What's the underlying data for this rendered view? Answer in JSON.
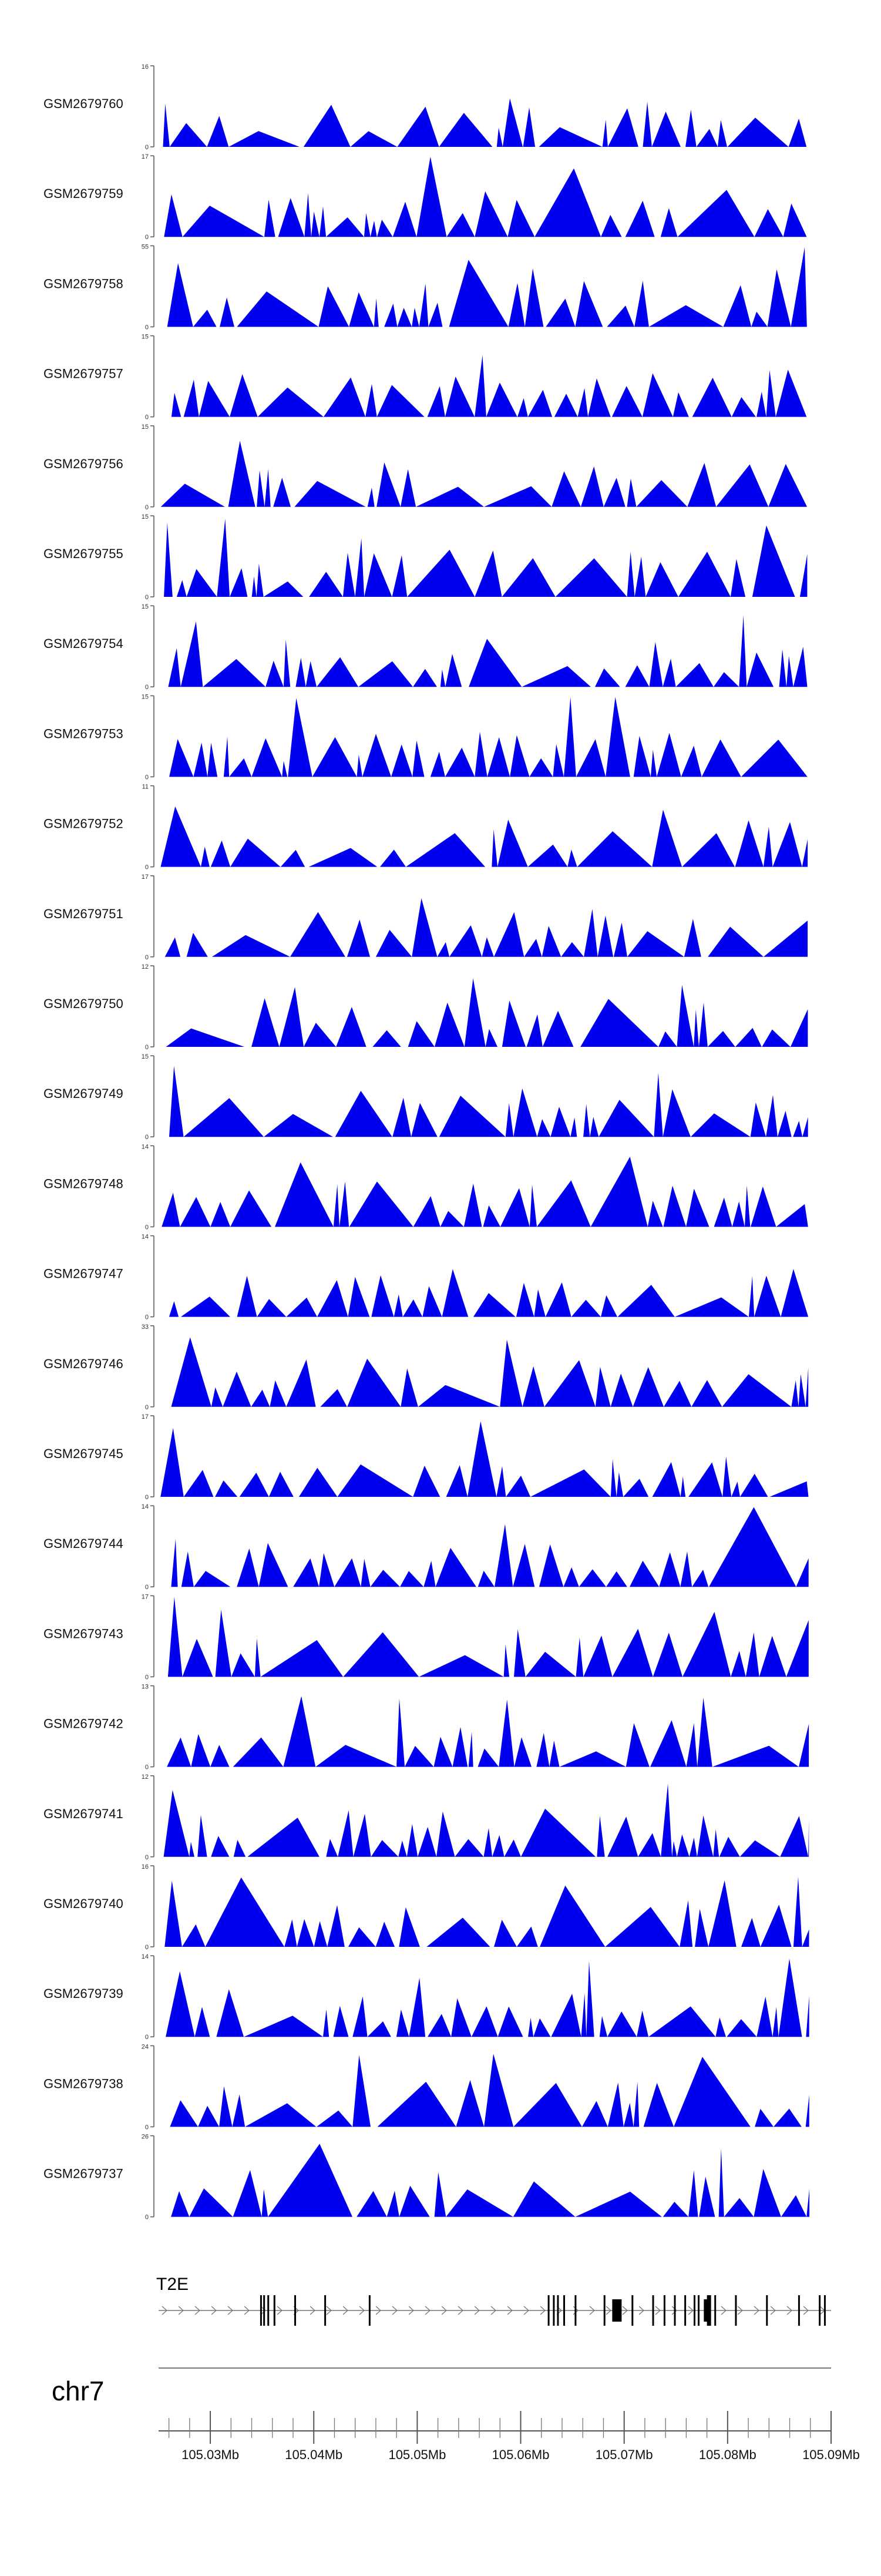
{
  "chart_data": {
    "type": "area",
    "chromosome": "chr7",
    "x_range_mb": [
      105.025,
      105.09
    ],
    "colors": {
      "track": "#0000ee",
      "axis": "#555555",
      "gene": "#000000",
      "intron": "#777777"
    },
    "tracks": [
      {
        "name": "GSM2679760",
        "ymax": "16",
        "bottom": "0",
        "max": 16,
        "seed": 11
      },
      {
        "name": "GSM2679759",
        "ymax": "17",
        "bottom": "0",
        "max": 17,
        "seed": 23
      },
      {
        "name": "GSM2679758",
        "ymax": "55",
        "bottom": "0",
        "max": 55,
        "seed": 37
      },
      {
        "name": "GSM2679757",
        "ymax": "15",
        "bottom": "0",
        "max": 15,
        "seed": 41
      },
      {
        "name": "GSM2679756",
        "ymax": "15",
        "bottom": "0",
        "max": 15,
        "seed": 53
      },
      {
        "name": "GSM2679755",
        "ymax": "15",
        "bottom": "0",
        "max": 15,
        "seed": 67
      },
      {
        "name": "GSM2679754",
        "ymax": "15",
        "bottom": "0",
        "max": 15,
        "seed": 71
      },
      {
        "name": "GSM2679753",
        "ymax": "15",
        "bottom": "0",
        "max": 15,
        "seed": 83
      },
      {
        "name": "GSM2679752",
        "ymax": "11",
        "bottom": "0",
        "max": 11,
        "seed": 97
      },
      {
        "name": "GSM2679751",
        "ymax": "17",
        "bottom": "0",
        "max": 17,
        "seed": 101
      },
      {
        "name": "GSM2679750",
        "ymax": "12",
        "bottom": "0",
        "max": 12,
        "seed": 113
      },
      {
        "name": "GSM2679749",
        "ymax": "15",
        "bottom": "0",
        "max": 15,
        "seed": 127
      },
      {
        "name": "GSM2679748",
        "ymax": "14",
        "bottom": "0",
        "max": 14,
        "seed": 131
      },
      {
        "name": "GSM2679747",
        "ymax": "14",
        "bottom": "0",
        "max": 14,
        "seed": 149
      },
      {
        "name": "GSM2679746",
        "ymax": "33",
        "bottom": "0",
        "max": 33,
        "seed": 151
      },
      {
        "name": "GSM2679745",
        "ymax": "17",
        "bottom": "0",
        "max": 17,
        "seed": 163
      },
      {
        "name": "GSM2679744",
        "ymax": "14",
        "bottom": "0",
        "max": 14,
        "seed": 173
      },
      {
        "name": "GSM2679743",
        "ymax": "17",
        "bottom": "0",
        "max": 17,
        "seed": 181
      },
      {
        "name": "GSM2679742",
        "ymax": "13",
        "bottom": "0",
        "max": 13,
        "seed": 191
      },
      {
        "name": "GSM2679741",
        "ymax": "12",
        "bottom": "0",
        "max": 12,
        "seed": 199
      },
      {
        "name": "GSM2679740",
        "ymax": "16",
        "bottom": "0",
        "max": 16,
        "seed": 211
      },
      {
        "name": "GSM2679739",
        "ymax": "14",
        "bottom": "0",
        "max": 14,
        "seed": 223
      },
      {
        "name": "GSM2679738",
        "ymax": "24",
        "bottom": "0",
        "max": 24,
        "seed": 227
      },
      {
        "name": "GSM2679737",
        "ymax": "26",
        "bottom": "0",
        "max": 26,
        "seed": 239
      }
    ],
    "gene": {
      "name": "T2E",
      "start_mb": 105.025,
      "end_mb": 105.09,
      "exons_mb": [
        105.0349,
        105.0352,
        105.0356,
        105.0362,
        105.0382,
        105.0411,
        105.0454,
        105.0627,
        105.0632,
        105.0636,
        105.0642,
        105.0653,
        105.0681,
        105.0693,
        105.0708,
        105.0728,
        105.0739,
        105.0749,
        105.0759,
        105.0768,
        105.0772,
        105.0779,
        105.0782,
        105.0788,
        105.0808,
        105.0838,
        105.0869,
        105.0889,
        105.0894
      ]
    },
    "axis": {
      "ticks": [
        {
          "value": 105.03,
          "label": "105.03Mb"
        },
        {
          "value": 105.04,
          "label": "105.04Mb"
        },
        {
          "value": 105.05,
          "label": "105.05Mb"
        },
        {
          "value": 105.06,
          "label": "105.06Mb"
        },
        {
          "value": 105.07,
          "label": "105.07Mb"
        },
        {
          "value": 105.08,
          "label": "105.08Mb"
        },
        {
          "value": 105.09,
          "label": "105.09Mb"
        }
      ],
      "minor_step_mb": 0.002
    }
  }
}
